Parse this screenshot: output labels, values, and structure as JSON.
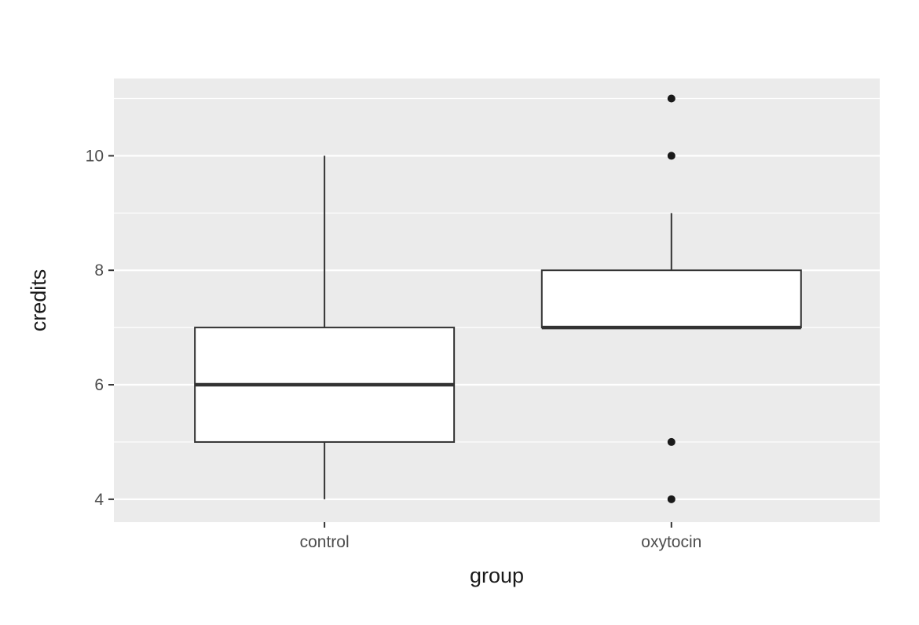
{
  "page": {
    "background": "#FFFFFF"
  },
  "chart_data": {
    "type": "boxplot",
    "title": "",
    "xlabel": "group",
    "ylabel": "credits",
    "categories": [
      "control",
      "oxytocin"
    ],
    "y_ticks": [
      4,
      6,
      8,
      10
    ],
    "y_minor_gridlines": [
      5,
      7,
      9,
      11
    ],
    "ylim": [
      3.6,
      11.35
    ],
    "grid": "on",
    "legend": "none",
    "series": [
      {
        "name": "control",
        "whisker_low": 4,
        "q1": 5,
        "median": 6,
        "q3": 7,
        "whisker_high": 10,
        "outliers": []
      },
      {
        "name": "oxytocin",
        "whisker_low": 7,
        "q1": 7,
        "median": 7,
        "q3": 8,
        "whisker_high": 9,
        "outliers": [
          11,
          10,
          5,
          4
        ]
      }
    ],
    "colors": {
      "panel_bg": "#EBEBEB",
      "gridline": "#FFFFFF",
      "box_fill": "#FFFFFF",
      "box_stroke": "#333333",
      "outlier": "#1A1A1A",
      "axis_text": "#4D4D4D",
      "axis_title": "#1A1A1A",
      "tick_mark": "#333333"
    }
  }
}
